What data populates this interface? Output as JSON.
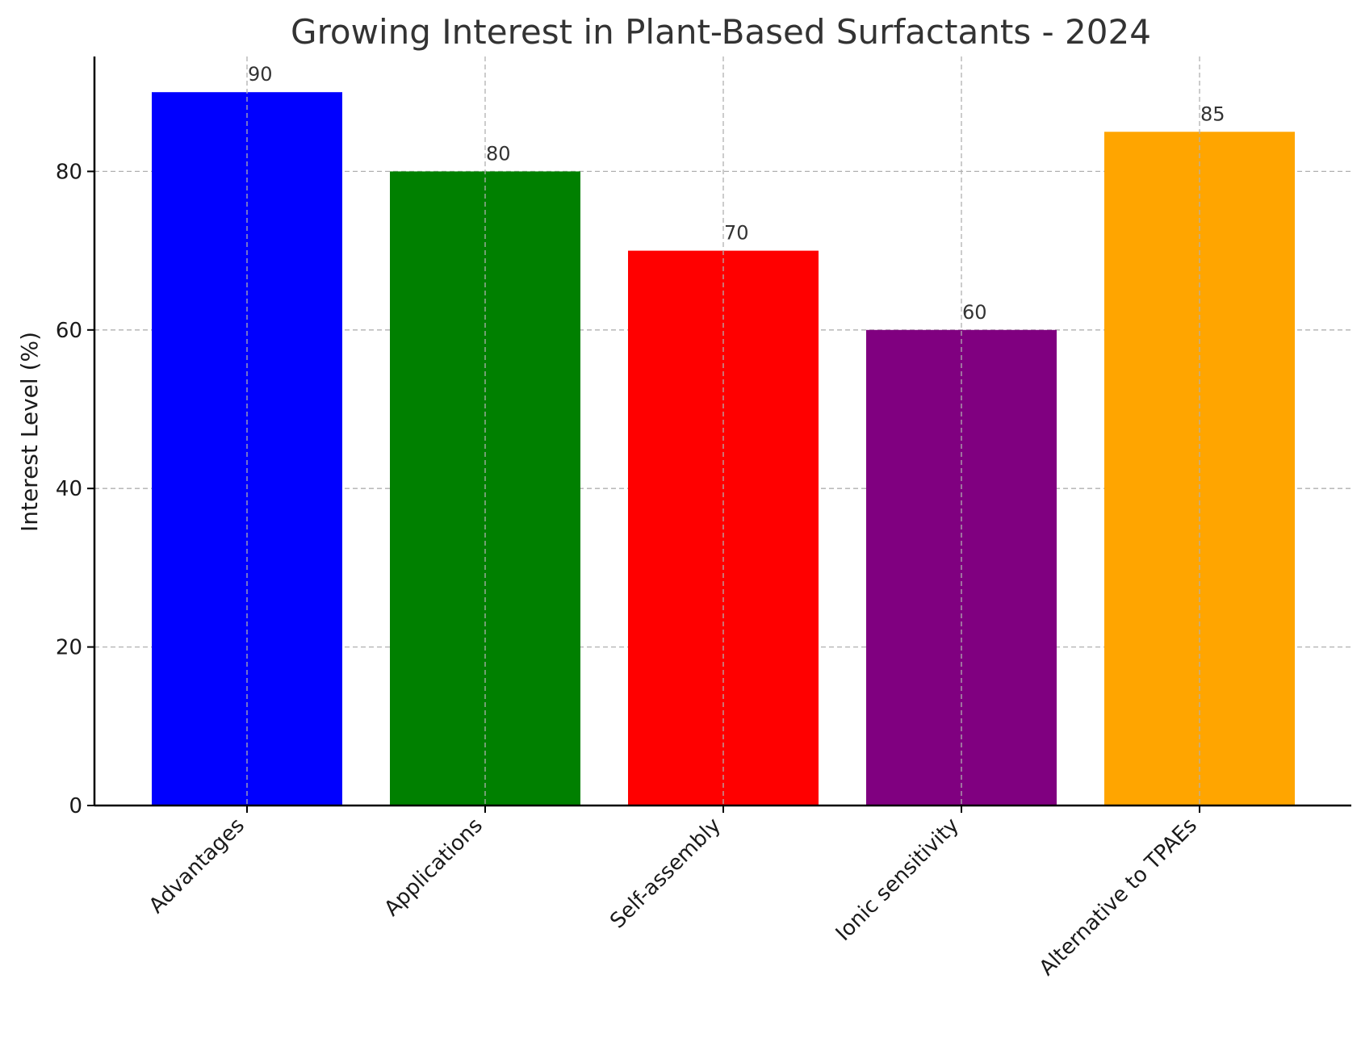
{
  "chart_data": {
    "type": "bar",
    "title": "Growing Interest in Plant-Based Surfactants - 2024",
    "xlabel": "",
    "ylabel": "Interest Level (%)",
    "categories": [
      "Advantages",
      "Applications",
      "Self-assembly",
      "Ionic sensitivity",
      "Alternative to TPAEs"
    ],
    "values": [
      90,
      80,
      70,
      60,
      85
    ],
    "value_labels": [
      "90",
      "80",
      "70",
      "60",
      "85"
    ],
    "colors": [
      "#0000ff",
      "#008000",
      "#ff0000",
      "#800080",
      "#ffa500"
    ],
    "ylim": [
      0,
      94.5
    ],
    "yticks": [
      0,
      20,
      40,
      60,
      80
    ],
    "ytick_labels": [
      "0",
      "20",
      "40",
      "60",
      "80"
    ],
    "grid": true,
    "legend": "none"
  }
}
